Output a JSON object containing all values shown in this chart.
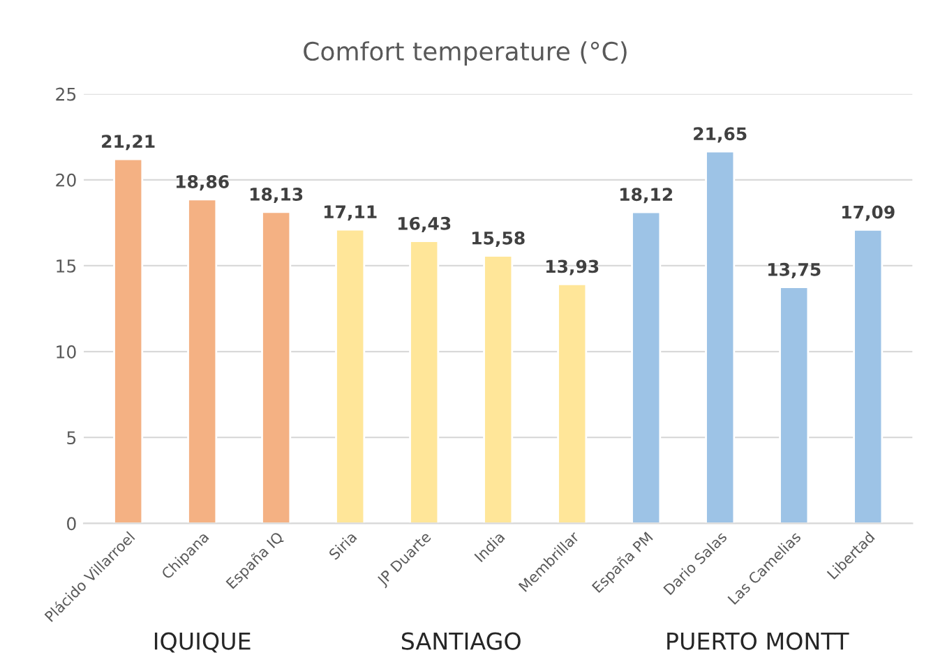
{
  "chart_data": {
    "type": "bar",
    "title": "Comfort temperature (°C)",
    "categories": [
      "Plácido Villarroel",
      "Chipana",
      "España IQ",
      "Siria",
      "JP Duarte",
      "India",
      "Membrillar",
      "España PM",
      "Dario Salas",
      "Las Camelias",
      "Libertad"
    ],
    "values": [
      21.21,
      18.86,
      18.13,
      17.11,
      16.43,
      15.58,
      13.93,
      18.12,
      21.65,
      13.75,
      17.09
    ],
    "value_labels": [
      "21,21",
      "18,86",
      "18,13",
      "17,11",
      "16,43",
      "15,58",
      "13,93",
      "18,12",
      "21,65",
      "13,75",
      "17,09"
    ],
    "colors": [
      "#f4b183",
      "#f4b183",
      "#f4b183",
      "#ffe699",
      "#ffe699",
      "#ffe699",
      "#ffe699",
      "#9dc3e6",
      "#9dc3e6",
      "#9dc3e6",
      "#9dc3e6"
    ],
    "ylim": [
      0,
      25
    ],
    "yticks": [
      0,
      5,
      10,
      15,
      20,
      25
    ],
    "grid": "y",
    "annotations": [
      "IQUIQUE",
      "SANTIAGO",
      "PUERTO MONTT"
    ]
  }
}
